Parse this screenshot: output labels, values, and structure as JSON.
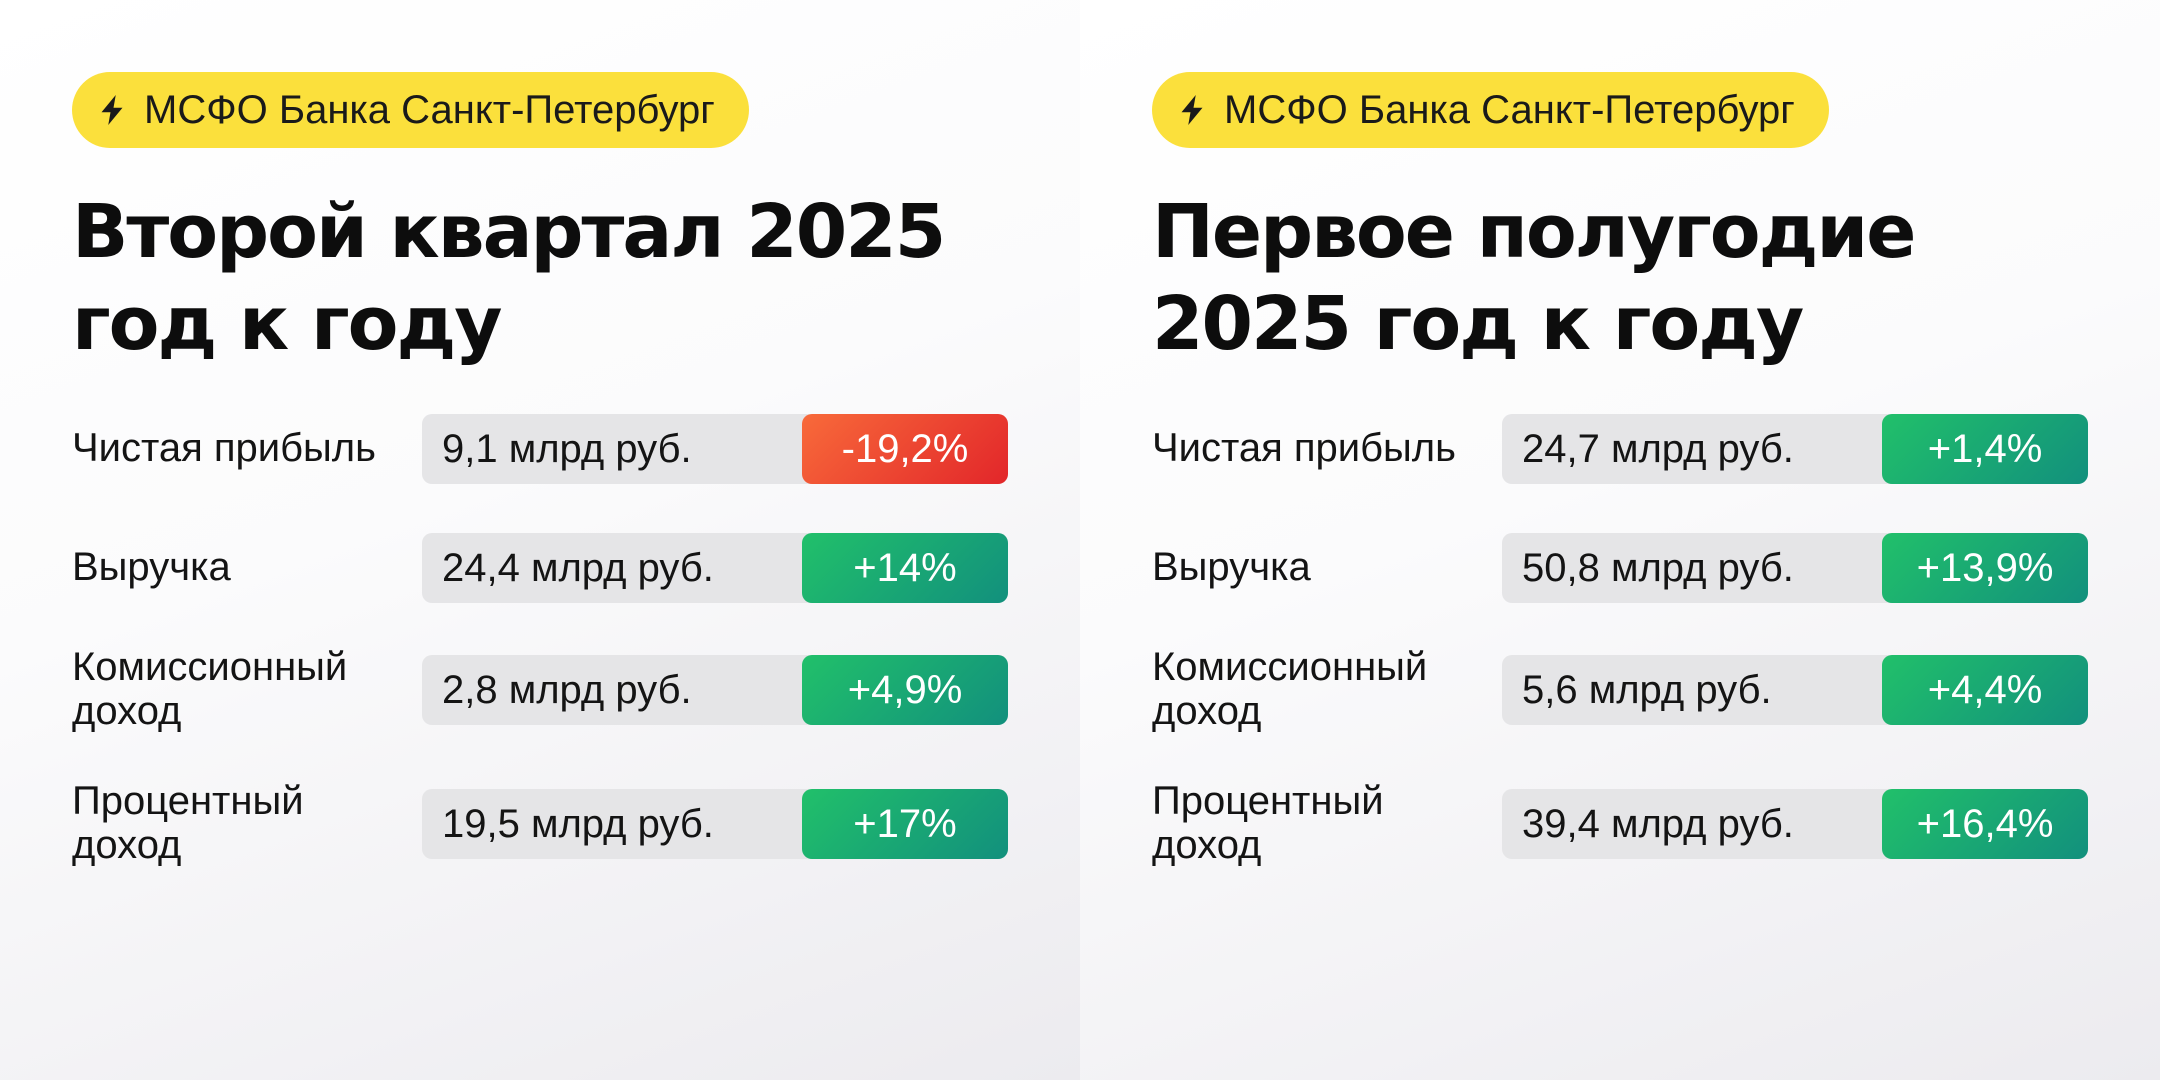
{
  "colors": {
    "badge": "#fbe03c",
    "negative": "#e2262a",
    "positive": "#21c06a",
    "bar": "#e5e5e7"
  },
  "panels": [
    {
      "badge": {
        "icon": "lightning-icon",
        "text": "МСФО Банка Санкт-Петербург"
      },
      "title_line1": "Второй квартал 2025",
      "title_line2": "год к году",
      "rows": [
        {
          "label_line1": "Чистая прибыль",
          "label_line2": "",
          "amount": "9,1 млрд руб.",
          "change": "-19,2%",
          "trend": "negative"
        },
        {
          "label_line1": "Выручка",
          "label_line2": "",
          "amount": "24,4 млрд руб.",
          "change": "+14%",
          "trend": "positive"
        },
        {
          "label_line1": "Комиссионный",
          "label_line2": "доход",
          "amount": "2,8 млрд руб.",
          "change": "+4,9%",
          "trend": "positive"
        },
        {
          "label_line1": "Процентный",
          "label_line2": "доход",
          "amount": "19,5 млрд руб.",
          "change": "+17%",
          "trend": "positive"
        }
      ]
    },
    {
      "badge": {
        "icon": "lightning-icon",
        "text": "МСФО Банка Санкт-Петербург"
      },
      "title_line1": "Первое полугодие",
      "title_line2": "2025 год к году",
      "rows": [
        {
          "label_line1": "Чистая прибыль",
          "label_line2": "",
          "amount": "24,7 млрд руб.",
          "change": "+1,4%",
          "trend": "positive"
        },
        {
          "label_line1": "Выручка",
          "label_line2": "",
          "amount": "50,8 млрд руб.",
          "change": "+13,9%",
          "trend": "positive"
        },
        {
          "label_line1": "Комиссионный",
          "label_line2": "доход",
          "amount": "5,6 млрд руб.",
          "change": "+4,4%",
          "trend": "positive"
        },
        {
          "label_line1": "Процентный",
          "label_line2": "доход",
          "amount": "39,4 млрд руб.",
          "change": "+16,4%",
          "trend": "positive"
        }
      ]
    }
  ]
}
